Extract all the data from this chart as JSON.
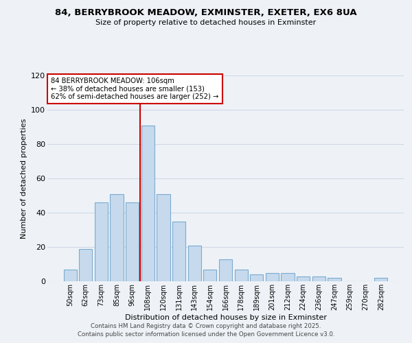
{
  "title1": "84, BERRYBROOK MEADOW, EXMINSTER, EXETER, EX6 8UA",
  "title2": "Size of property relative to detached houses in Exminster",
  "xlabel": "Distribution of detached houses by size in Exminster",
  "ylabel": "Number of detached properties",
  "bar_labels": [
    "50sqm",
    "62sqm",
    "73sqm",
    "85sqm",
    "96sqm",
    "108sqm",
    "120sqm",
    "131sqm",
    "143sqm",
    "154sqm",
    "166sqm",
    "178sqm",
    "189sqm",
    "201sqm",
    "212sqm",
    "224sqm",
    "236sqm",
    "247sqm",
    "259sqm",
    "270sqm",
    "282sqm"
  ],
  "bar_heights": [
    7,
    19,
    46,
    51,
    46,
    91,
    51,
    35,
    21,
    7,
    13,
    7,
    4,
    5,
    5,
    3,
    3,
    2,
    0,
    0,
    2
  ],
  "bar_color": "#c6d9ed",
  "bar_edge_color": "#7aabcf",
  "vline_x_index": 5,
  "vline_color": "#cc0000",
  "annotation_title": "84 BERRYBROOK MEADOW: 106sqm",
  "annotation_line1": "← 38% of detached houses are smaller (153)",
  "annotation_line2": "62% of semi-detached houses are larger (252) →",
  "annotation_box_color": "#ffffff",
  "annotation_border_color": "#cc0000",
  "ylim": [
    0,
    120
  ],
  "yticks": [
    0,
    20,
    40,
    60,
    80,
    100,
    120
  ],
  "footer1": "Contains HM Land Registry data © Crown copyright and database right 2025.",
  "footer2": "Contains public sector information licensed under the Open Government Licence v3.0.",
  "background_color": "#eef2f7",
  "plot_background_color": "#eef2f7",
  "grid_color": "#d0d8e4"
}
